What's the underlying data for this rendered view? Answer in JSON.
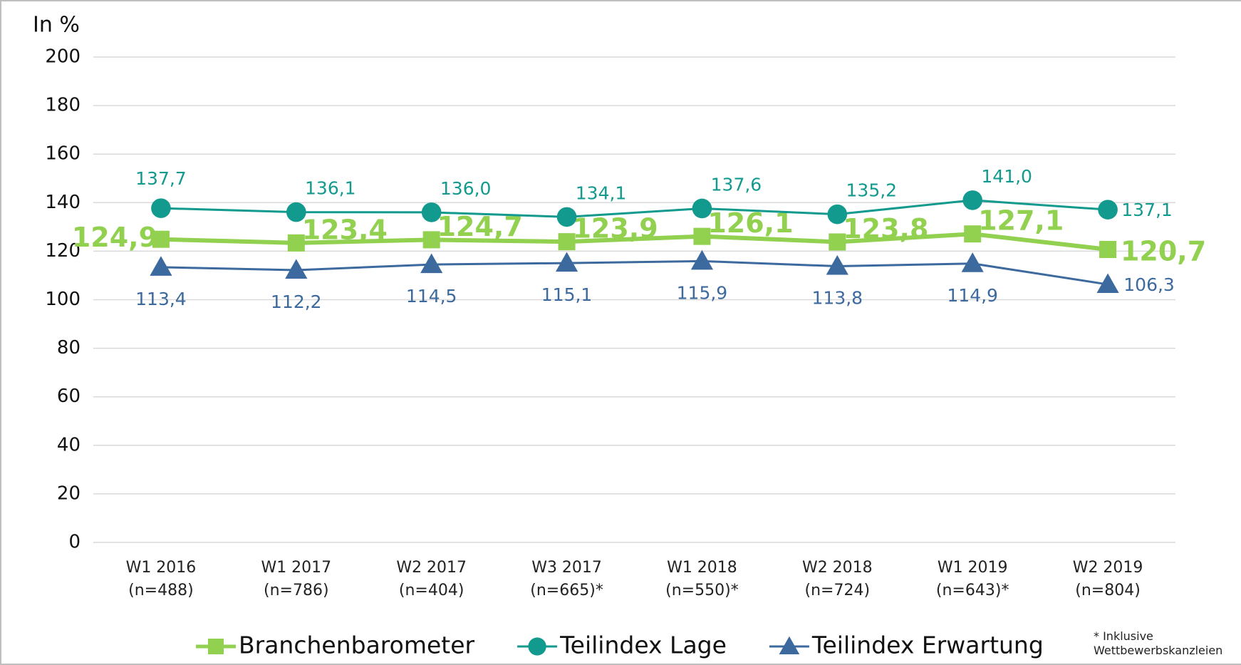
{
  "chart_data": {
    "type": "line",
    "y_label": "In %",
    "categories": [
      "W1 2016\n(n=488)",
      "W1 2017\n(n=786)",
      "W2 2017\n(n=404)",
      "W3 2017\n(n=665)*",
      "W1 2018\n(n=550)*",
      "W2 2018\n(n=724)",
      "W1 2019\n(n=643)*",
      "W2 2019\n(n=804)"
    ],
    "series": [
      {
        "name": "Branchenbarometer",
        "color": "#92d050",
        "marker": "square",
        "values": [
          124.9,
          123.4,
          124.7,
          123.9,
          126.1,
          123.8,
          127.1,
          120.7
        ],
        "value_labels": [
          "124,9",
          "123,4",
          "124,7",
          "123,9",
          "126,1",
          "123,8",
          "127,1",
          "120,7"
        ]
      },
      {
        "name": "Teilindex Lage",
        "color": "#139a8e",
        "marker": "circle",
        "values": [
          137.7,
          136.1,
          136.0,
          134.1,
          137.6,
          135.2,
          141.0,
          137.1
        ],
        "value_labels": [
          "137,7",
          "136,1",
          "136,0",
          "134,1",
          "137,6",
          "135,2",
          "141,0",
          "137,1"
        ]
      },
      {
        "name": "Teilindex Erwartung",
        "color": "#3d6a9e",
        "marker": "triangle",
        "values": [
          113.4,
          112.2,
          114.5,
          115.1,
          115.9,
          113.8,
          114.9,
          106.3
        ],
        "value_labels": [
          "113,4",
          "112,2",
          "114,5",
          "115,1",
          "115,9",
          "113,8",
          "114,9",
          "106,3"
        ]
      }
    ],
    "ylim": [
      0,
      200
    ],
    "yticks": [
      0,
      20,
      40,
      60,
      80,
      100,
      120,
      140,
      160,
      180,
      200
    ],
    "grid": true,
    "legend": "bottom",
    "annotation": "* Inklusive\nWettbewerbskanzleien"
  }
}
